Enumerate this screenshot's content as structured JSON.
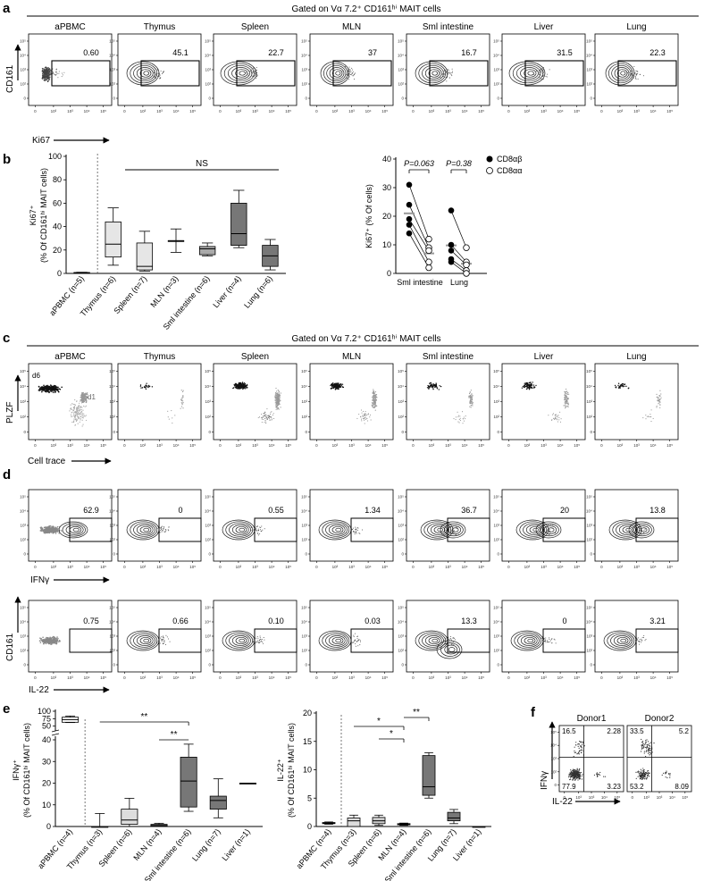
{
  "panel_a": {
    "letter": "a",
    "gate_title": "Gated on Vα 7.2⁺ CD161ʰⁱ MAIT cells",
    "y_axis": "CD161",
    "x_axis": "Ki67",
    "tissues": [
      "aPBMC",
      "Thymus",
      "Spleen",
      "MLN",
      "Sml intestine",
      "Liver",
      "Lung"
    ],
    "values": [
      "0.60",
      "45.1",
      "22.7",
      "37",
      "16.7",
      "31.5",
      "22.3"
    ]
  },
  "panel_b": {
    "letter": "b",
    "box_ylabel_1": "Ki67⁺",
    "box_ylabel_2": "(% Of CD161ʰⁱ MAIT cells)",
    "ns_label": "NS",
    "box_categories": [
      "aPBMC (n=5)",
      "Thymus (n=6)",
      "Spleen (n=7)",
      "MLN (n=3)",
      "Sml intestine (n=6)",
      "Liver (n=4)",
      "Lung (n=6)"
    ],
    "box_yticks": [
      "0",
      "20",
      "40",
      "60",
      "80",
      "100"
    ],
    "pair_ylabel": "Ki67⁺ (% Of cells)",
    "pair_yticks": [
      "0",
      "10",
      "20",
      "30",
      "40"
    ],
    "pair_categories": [
      "Sml intestine",
      "Lung"
    ],
    "p_values": [
      "P=0.063",
      "P=0.38"
    ],
    "legend": [
      "CD8αβ",
      "CD8αα"
    ]
  },
  "panel_c": {
    "letter": "c",
    "gate_title": "Gated on Vα 7.2⁺ CD161ʰⁱ MAIT cells",
    "y_axis": "PLZF",
    "x_axis": "Cell trace",
    "tissues": [
      "aPBMC",
      "Thymus",
      "Spleen",
      "MLN",
      "Sml intestine",
      "Liver",
      "Lung"
    ],
    "d6_label": "d6",
    "d1_label": "d1"
  },
  "panel_d": {
    "letter": "d",
    "row1_y_axis": "",
    "row1_x_axis": "IFNγ",
    "row1_values": [
      "62.9",
      "0",
      "0.55",
      "1.34",
      "36.7",
      "20",
      "13.8"
    ],
    "row2_y_axis": "CD161",
    "row2_x_axis": "IL-22",
    "row2_values": [
      "0.75",
      "0.66",
      "0.10",
      "0.03",
      "13.3",
      "0",
      "3.21"
    ]
  },
  "panel_e": {
    "letter": "e",
    "left_ylabel_1": "IFNγ⁺",
    "left_ylabel_2": "(% Of CD161ʰⁱ MAIT cells)",
    "left_yticks": [
      "0",
      "10",
      "20",
      "30",
      "40",
      "50",
      "75",
      "100"
    ],
    "left_categories": [
      "aPBMC (n=4)",
      "Thymus (n=3)",
      "Spleen (n=6)",
      "MLN (n=4)",
      "Sml intestine (n=6)",
      "Lung (n=7)",
      "Liver (n=1)"
    ],
    "right_ylabel_1": "IL-22⁺",
    "right_ylabel_2": "(% Of CD161ʰⁱ MAIT cells)",
    "right_yticks": [
      "0",
      "5",
      "10",
      "15",
      "20"
    ],
    "right_categories": [
      "aPBMC (n=4)",
      "Thymus (n=3)",
      "Spleen (n=6)",
      "MLN (n=4)",
      "Sml intestine (n=6)",
      "Lung (n=7)",
      "Liver (n=1)"
    ],
    "sig": [
      "**",
      "**",
      "*",
      "*",
      "**"
    ]
  },
  "panel_f": {
    "letter": "f",
    "donors": [
      "Donor1",
      "Donor2"
    ],
    "y_axis": "IFNγ",
    "x_axis": "IL-22",
    "donor1_quadrants": [
      "16.5",
      "2.28",
      "77.9",
      "3.23"
    ],
    "donor2_quadrants": [
      "33.5",
      "5.2",
      "53.2",
      "8.09"
    ]
  },
  "chart_data": [
    {
      "type": "box",
      "panel": "b-left",
      "categories": [
        "aPBMC (n=5)",
        "Thymus (n=6)",
        "Spleen (n=7)",
        "MLN (n=3)",
        "Sml intestine (n=6)",
        "Liver (n=4)",
        "Lung (n=6)"
      ],
      "ylabel": "Ki67⁺ (% Of CD161ʰⁱ MAIT cells)",
      "ylim": [
        0,
        100
      ],
      "boxes": [
        {
          "min": 0,
          "q1": 0,
          "median": 0.5,
          "q3": 0.8,
          "max": 1
        },
        {
          "min": 7,
          "q1": 14,
          "median": 25,
          "q3": 44,
          "max": 56
        },
        {
          "min": 2,
          "q1": 3,
          "median": 6,
          "q3": 26,
          "max": 36
        },
        {
          "min": 18,
          "q1": 28,
          "median": 28,
          "q3": 28,
          "max": 38
        },
        {
          "min": 15,
          "q1": 16,
          "median": 21,
          "q3": 23,
          "max": 26
        },
        {
          "min": 22,
          "q1": 24,
          "median": 34,
          "q3": 60,
          "max": 71
        },
        {
          "min": 3,
          "q1": 6,
          "median": 15,
          "q3": 24,
          "max": 29
        }
      ]
    },
    {
      "type": "scatter",
      "panel": "b-right",
      "categories": [
        "Sml intestine",
        "Lung"
      ],
      "ylabel": "Ki67⁺ (% Of cells)",
      "ylim": [
        0,
        40
      ],
      "series": [
        {
          "name": "CD8αβ",
          "values": [
            [
              31,
              24,
              19,
              17,
              14
            ],
            [
              22,
              10,
              8,
              5,
              4
            ]
          ]
        },
        {
          "name": "CD8αα",
          "values": [
            [
              12,
              9,
              8,
              4,
              2
            ],
            [
              9,
              4,
              3,
              1,
              0
            ]
          ]
        }
      ]
    },
    {
      "type": "box",
      "panel": "e-left",
      "categories": [
        "aPBMC (n=4)",
        "Thymus (n=3)",
        "Spleen (n=6)",
        "MLN (n=4)",
        "Sml intestine (n=6)",
        "Lung (n=7)",
        "Liver (n=1)"
      ],
      "ylabel": "IFNγ⁺ (% Of CD161ʰⁱ MAIT cells)",
      "boxes": [
        {
          "min": 62,
          "q1": 63,
          "median": 72,
          "q3": 80,
          "max": 84
        },
        {
          "min": 0,
          "q1": 0,
          "median": 0,
          "q3": 0,
          "max": 6
        },
        {
          "min": 0,
          "q1": 1,
          "median": 3,
          "q3": 8,
          "max": 13
        },
        {
          "min": 0,
          "q1": 0.2,
          "median": 0.5,
          "q3": 1,
          "max": 1.5
        },
        {
          "min": 7,
          "q1": 9,
          "median": 21,
          "q3": 32,
          "max": 38
        },
        {
          "min": 4,
          "q1": 8,
          "median": 12,
          "q3": 14,
          "max": 22
        },
        {
          "min": 20,
          "q1": 20,
          "median": 20,
          "q3": 20,
          "max": 20
        }
      ]
    },
    {
      "type": "box",
      "panel": "e-right",
      "categories": [
        "aPBMC (n=4)",
        "Thymus (n=3)",
        "Spleen (n=6)",
        "MLN (n=4)",
        "Sml intestine (n=6)",
        "Lung (n=7)",
        "Liver (n=1)"
      ],
      "ylabel": "IL-22⁺ (% Of CD161ʰⁱ MAIT cells)",
      "ylim": [
        0,
        20
      ],
      "boxes": [
        {
          "min": 0.4,
          "q1": 0.5,
          "median": 0.6,
          "q3": 0.7,
          "max": 0.8
        },
        {
          "min": 0,
          "q1": 0,
          "median": 1,
          "q3": 1.5,
          "max": 2
        },
        {
          "min": 0.2,
          "q1": 0.5,
          "median": 1,
          "q3": 1.6,
          "max": 2
        },
        {
          "min": 0.2,
          "q1": 0.3,
          "median": 0.4,
          "q3": 0.5,
          "max": 0.6
        },
        {
          "min": 5,
          "q1": 5.5,
          "median": 7,
          "q3": 12.5,
          "max": 13
        },
        {
          "min": 0.5,
          "q1": 1,
          "median": 1.5,
          "q3": 2.5,
          "max": 3
        },
        {
          "min": 0,
          "q1": 0,
          "median": 0,
          "q3": 0,
          "max": 0
        }
      ]
    }
  ]
}
